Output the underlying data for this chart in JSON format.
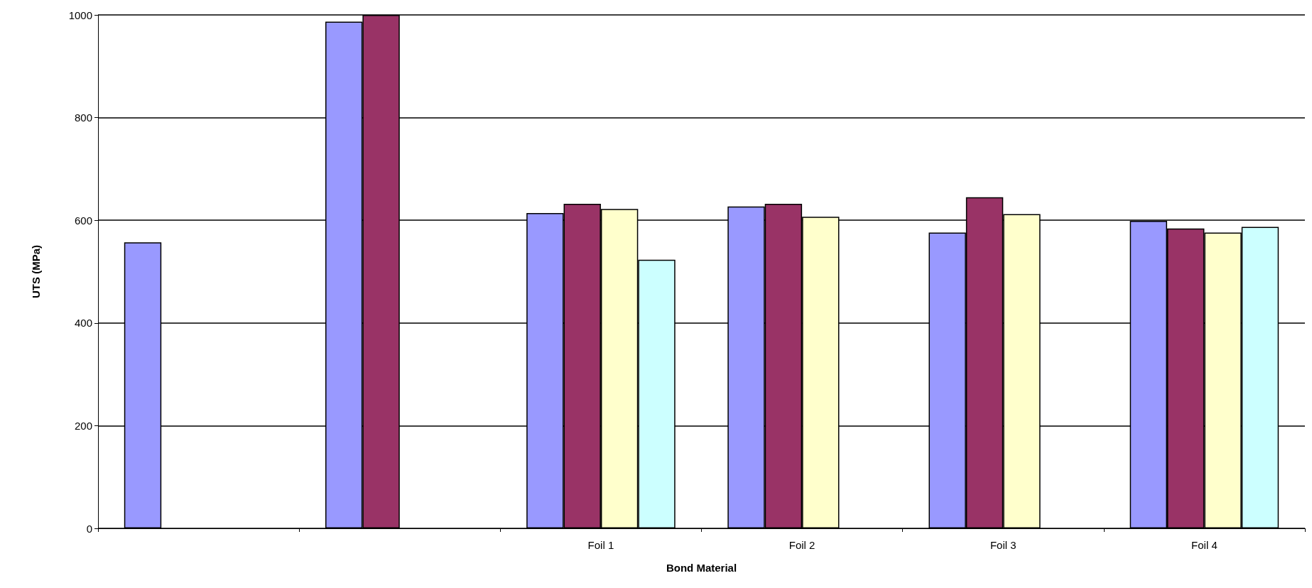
{
  "chart_data": {
    "type": "bar",
    "xlabel": "Bond Material",
    "ylabel": "UTS (MPa)",
    "categories": [
      null,
      null,
      "Foil 1",
      "Foil 2",
      "Foil 3",
      "Foil 4"
    ],
    "series": [
      {
        "color": "#9999ff",
        "values": [
          557,
          987,
          614,
          627,
          576,
          599
        ]
      },
      {
        "color": "#993366",
        "values": [
          null,
          1000,
          632,
          632,
          645,
          584
        ]
      },
      {
        "color": "#ffffcc",
        "values": [
          null,
          null,
          622,
          607,
          612,
          576
        ]
      },
      {
        "color": "#ccffff",
        "values": [
          null,
          null,
          523,
          null,
          null,
          587
        ]
      }
    ],
    "ylim": [
      0,
      1000
    ],
    "yticks": [
      0,
      200,
      400,
      600,
      800,
      1000
    ],
    "grid": "y"
  }
}
